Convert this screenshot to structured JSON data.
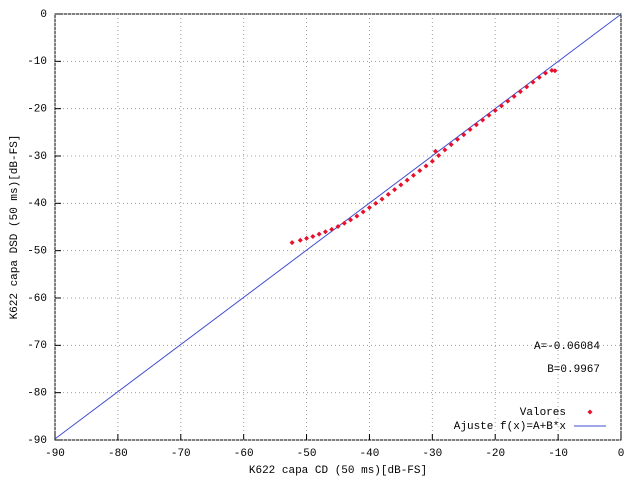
{
  "chart_data": {
    "type": "scatter",
    "xlabel": "K622 capa CD (50 ms)[dB-FS]",
    "ylabel": "K622 capa DSD (50 ms)[dB-FS]",
    "xlim": [
      -90,
      0
    ],
    "ylim": [
      -90,
      0
    ],
    "xticks": [
      -90,
      -80,
      -70,
      -60,
      -50,
      -40,
      -30,
      -20,
      -10,
      0
    ],
    "yticks": [
      -90,
      -80,
      -70,
      -60,
      -50,
      -40,
      -30,
      -20,
      -10,
      0
    ],
    "grid": true,
    "legend": "bottom right",
    "annotations": [
      {
        "text": "A=-0.06084"
      },
      {
        "text": "B=0.9967"
      }
    ],
    "series": [
      {
        "name": "Valores",
        "type": "scatter",
        "color": "#e8112d",
        "x": [
          -52.3,
          -51,
          -50,
          -49,
          -48,
          -47,
          -46,
          -45,
          -44,
          -43,
          -42,
          -41,
          -40,
          -39,
          -38,
          -37,
          -36,
          -35,
          -34,
          -33,
          -32,
          -31,
          -30,
          -29.5,
          -29,
          -28,
          -27,
          -26,
          -25,
          -24,
          -23,
          -22,
          -21,
          -20,
          -19,
          -18,
          -17,
          -16,
          -15,
          -14,
          -13,
          -12,
          -11,
          -10.5
        ],
        "values": [
          -48.3,
          -47.8,
          -47.4,
          -47,
          -46.5,
          -46,
          -45.5,
          -44.9,
          -44.2,
          -43.5,
          -42.7,
          -41.8,
          -40.9,
          -40,
          -39.1,
          -38.1,
          -37.1,
          -36.1,
          -35.1,
          -34.1,
          -33.1,
          -32.1,
          -31.1,
          -29,
          -29.9,
          -28.7,
          -27.6,
          -26.5,
          -25.5,
          -24.4,
          -23.4,
          -22.4,
          -21.4,
          -20.4,
          -19.4,
          -18.4,
          -17.4,
          -16.4,
          -15.4,
          -14.4,
          -13.4,
          -12.5,
          -11.9,
          -12
        ]
      },
      {
        "name": "Ajuste f(x)=A+B*x",
        "type": "line",
        "color": "#3f4fd0",
        "x": [
          -90,
          0
        ],
        "values": [
          -89.76,
          -0.06
        ]
      }
    ]
  }
}
